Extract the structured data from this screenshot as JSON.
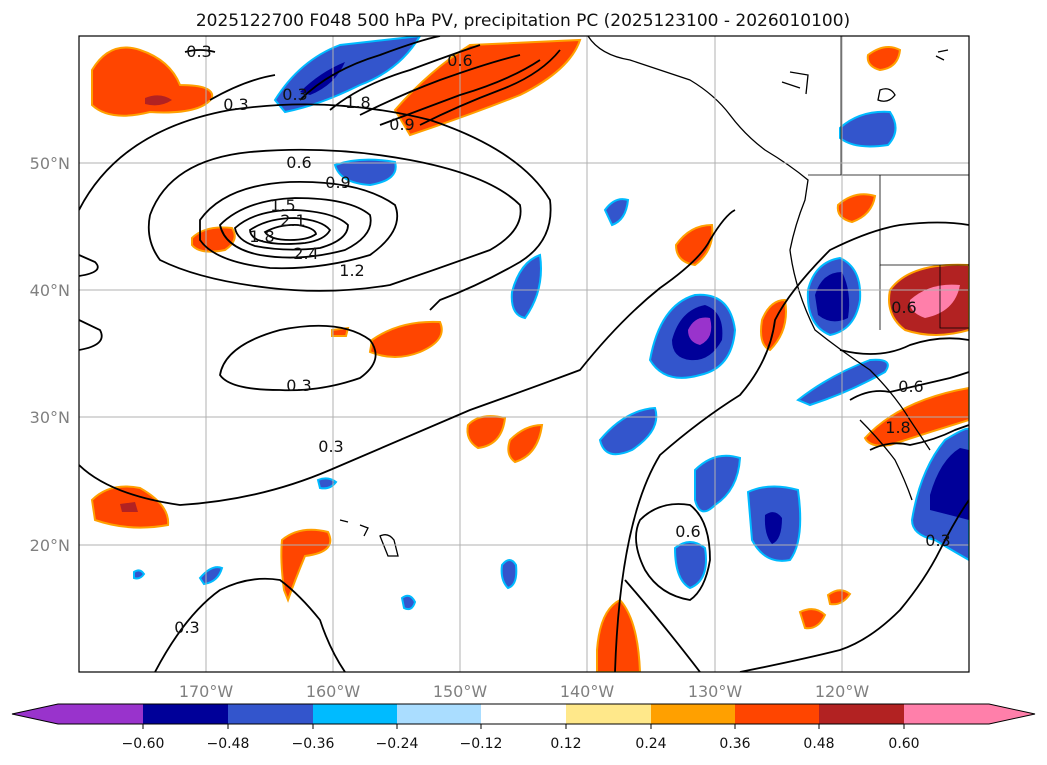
{
  "title": "2025122700 F048 500 hPa PV, precipitation PC (2025123100 - 2026010100)",
  "colors": {
    "negative": [
      "#9933cc",
      "#000099",
      "#3355cc",
      "#00bbff",
      "#aaddff"
    ],
    "neutral": "#ffffff",
    "positive": [
      "#ffe88a",
      "#ffa000",
      "#ff4500",
      "#b22222",
      "#ff7faa"
    ],
    "contour": "#000000",
    "grid": "#b0b0b0",
    "tick_label": "#808080"
  },
  "axes": {
    "lat_labels": [
      "50°N",
      "40°N",
      "30°N",
      "20°N"
    ],
    "lon_labels": [
      "170°W",
      "160°W",
      "150°W",
      "140°W",
      "130°W",
      "120°W"
    ]
  },
  "colorbar": {
    "ticks": [
      "−0.60",
      "−0.48",
      "−0.36",
      "−0.24",
      "−0.12",
      "0.12",
      "0.24",
      "0.36",
      "0.48",
      "0.60"
    ]
  },
  "contour_labels": [
    "0.3",
    "0.3",
    "0.6",
    "0.9",
    "1.8",
    "1.5",
    "1.8",
    "2.1",
    "2.4",
    "1.2",
    "0.3",
    "0.3",
    "0.3",
    "0.6",
    "0.6",
    "0.3",
    "0.6",
    "1.8",
    "0.9",
    "0.6",
    "0.3"
  ]
}
